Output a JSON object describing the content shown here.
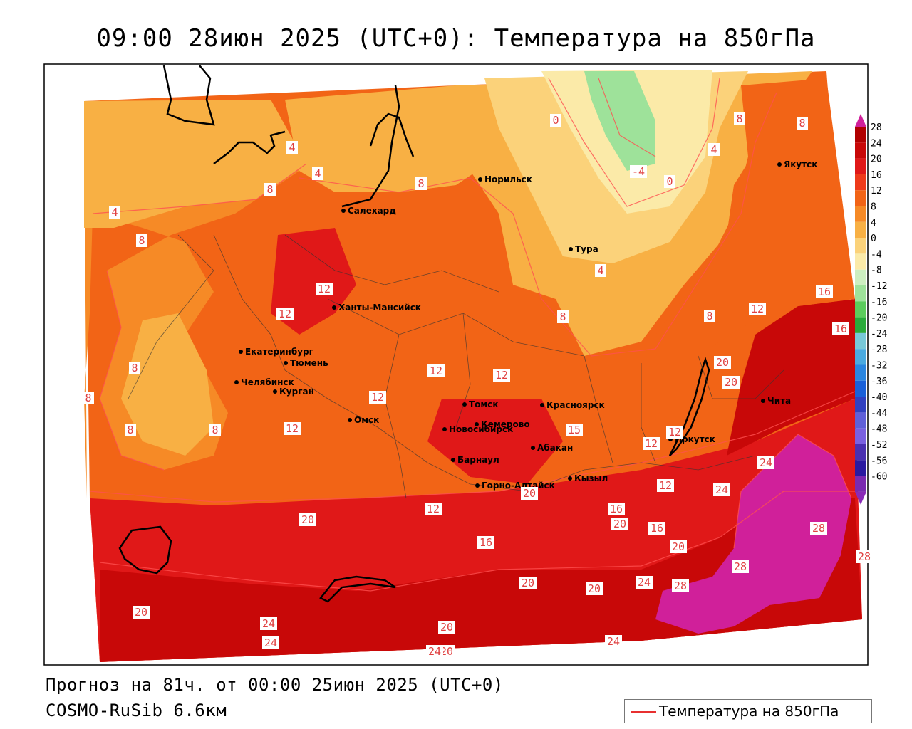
{
  "title": "09:00 28июн 2025 (UTC+0): Температура на 850гПа",
  "forecast_line": "Прогноз на 81ч. от 00:00 25июн 2025 (UTC+0)",
  "model_line": "COSMO-RuSib 6.6км",
  "legend_label": "Температура на 850гПа",
  "colorbar": {
    "ticks": [
      "28",
      "24",
      "20",
      "16",
      "12",
      "8",
      "4",
      "0",
      "-4",
      "-8",
      "-12",
      "-16",
      "-20",
      "-24",
      "-28",
      "-32",
      "-36",
      "-40",
      "-44",
      "-48",
      "-52",
      "-56",
      "-60"
    ],
    "colors": [
      "#b00000",
      "#c80808",
      "#e01818",
      "#ee3a1a",
      "#f26416",
      "#f68a26",
      "#f8b044",
      "#fbd27a",
      "#fbeaa8",
      "#cdeec0",
      "#9ee29a",
      "#5ccc5c",
      "#2aaa3a",
      "#78c8d8",
      "#4aaae0",
      "#2a86e0",
      "#1a60d8",
      "#3040c0",
      "#6060d8",
      "#7a60e0",
      "#4a30b0",
      "#2a1aa0",
      "#7a2ab0"
    ],
    "top_color": "#d0209a"
  },
  "cities": [
    {
      "name": "Салехард"
    },
    {
      "name": "Норильск"
    },
    {
      "name": "Тура"
    },
    {
      "name": "Якутск"
    },
    {
      "name": "Ханты-Мансийск"
    },
    {
      "name": "Екатеринбург"
    },
    {
      "name": "Тюмень"
    },
    {
      "name": "Челябинск"
    },
    {
      "name": "Курган"
    },
    {
      "name": "Омск"
    },
    {
      "name": "Новосибирск"
    },
    {
      "name": "Томск"
    },
    {
      "name": "Кемерово"
    },
    {
      "name": "Красноярск"
    },
    {
      "name": "Барнаул"
    },
    {
      "name": "Абакан"
    },
    {
      "name": "Горно-Алтайск"
    },
    {
      "name": "Кызыл"
    },
    {
      "name": "Иркутск"
    },
    {
      "name": "Чита"
    }
  ],
  "contour_labels": [
    "0",
    "4",
    "-4",
    "0",
    "4",
    "8",
    "8",
    "4",
    "8",
    "4",
    "8",
    "8",
    "4",
    "8",
    "12",
    "12",
    "8",
    "8",
    "8",
    "8",
    "8",
    "12",
    "12",
    "12",
    "12",
    "12",
    "12",
    "15",
    "16",
    "16",
    "20",
    "12",
    "12",
    "12",
    "16",
    "20",
    "20",
    "24",
    "24",
    "28",
    "28",
    "28",
    "20",
    "20",
    "16",
    "16",
    "20",
    "20",
    "24",
    "28",
    "20",
    "20",
    "24",
    "24",
    "20",
    "24",
    "20",
    "24"
  ]
}
